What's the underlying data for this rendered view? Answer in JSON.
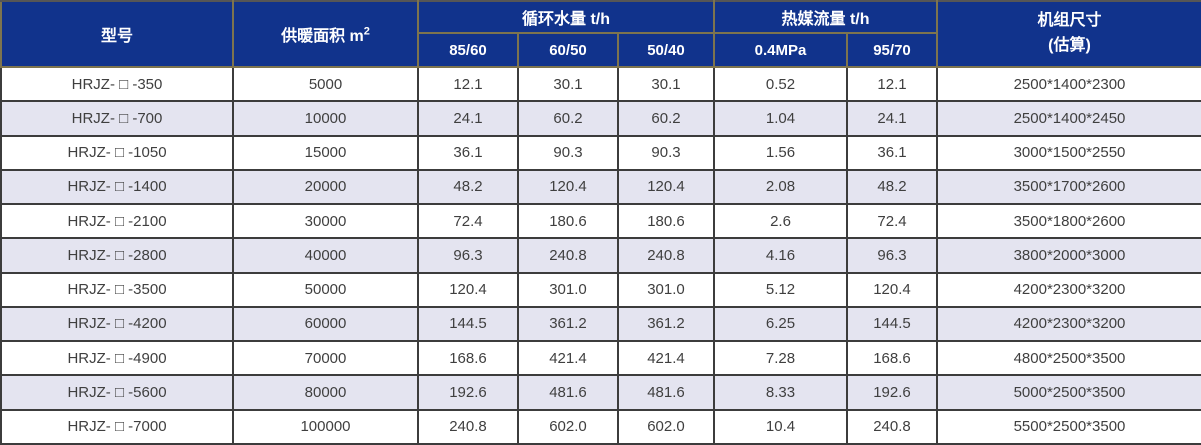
{
  "table": {
    "header": {
      "model_label": "型号",
      "area_label": "供暖面积 m",
      "area_sup": "2",
      "water_group_label": "循环水量 t/h",
      "water_subs": [
        "85/60",
        "60/50",
        "50/40"
      ],
      "heat_group_label": "热媒流量 t/h",
      "heat_subs": [
        "0.4MPa",
        "95/70"
      ],
      "size_label_line1": "机组尺寸",
      "size_label_line2": "(估算)"
    },
    "rows": [
      [
        "HRJZ- □ -350",
        "5000",
        "12.1",
        "30.1",
        "30.1",
        "0.52",
        "12.1",
        "2500*1400*2300"
      ],
      [
        "HRJZ- □ -700",
        "10000",
        "24.1",
        "60.2",
        "60.2",
        "1.04",
        "24.1",
        "2500*1400*2450"
      ],
      [
        "HRJZ- □ -1050",
        "15000",
        "36.1",
        "90.3",
        "90.3",
        "1.56",
        "36.1",
        "3000*1500*2550"
      ],
      [
        "HRJZ- □ -1400",
        "20000",
        "48.2",
        "120.4",
        "120.4",
        "2.08",
        "48.2",
        "3500*1700*2600"
      ],
      [
        "HRJZ- □ -2100",
        "30000",
        "72.4",
        "180.6",
        "180.6",
        "2.6",
        "72.4",
        "3500*1800*2600"
      ],
      [
        "HRJZ- □ -2800",
        "40000",
        "96.3",
        "240.8",
        "240.8",
        "4.16",
        "96.3",
        "3800*2000*3000"
      ],
      [
        "HRJZ- □ -3500",
        "50000",
        "120.4",
        "301.0",
        "301.0",
        "5.12",
        "120.4",
        "4200*2300*3200"
      ],
      [
        "HRJZ- □ -4200",
        "60000",
        "144.5",
        "361.2",
        "361.2",
        "6.25",
        "144.5",
        "4200*2300*3200"
      ],
      [
        "HRJZ- □ -4900",
        "70000",
        "168.6",
        "421.4",
        "421.4",
        "7.28",
        "168.6",
        "4800*2500*3500"
      ],
      [
        "HRJZ- □ -5600",
        "80000",
        "192.6",
        "481.6",
        "481.6",
        "8.33",
        "192.6",
        "5000*2500*3500"
      ],
      [
        "HRJZ- □ -7000",
        "100000",
        "240.8",
        "602.0",
        "602.0",
        "10.4",
        "240.8",
        "5500*2500*3500"
      ]
    ]
  },
  "colors": {
    "header_bg": "#11338c",
    "header_text": "#ffffff",
    "body_text": "#3f3f3f",
    "row_bg": "#ffffff",
    "row_alt_bg": "#e4e4f0",
    "grid_border": "#3c3c3c",
    "header_border": "#7d744e"
  }
}
